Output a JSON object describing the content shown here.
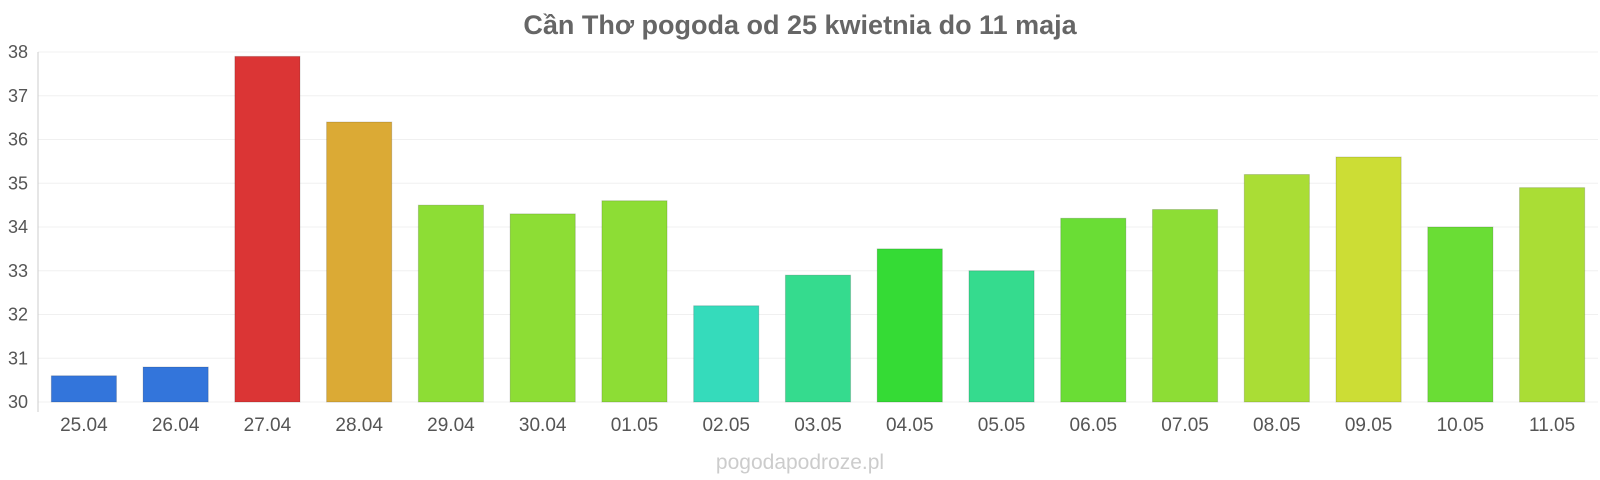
{
  "chart_data": {
    "type": "bar",
    "title": "Cần Thơ pogoda od 25 kwietnia do 11 maja",
    "xlabel": "",
    "ylabel": "",
    "categories": [
      "25.04",
      "26.04",
      "27.04",
      "28.04",
      "29.04",
      "30.04",
      "01.05",
      "02.05",
      "03.05",
      "04.05",
      "05.05",
      "06.05",
      "07.05",
      "08.05",
      "09.05",
      "10.05",
      "11.05"
    ],
    "values": [
      30.6,
      30.8,
      37.9,
      36.4,
      34.5,
      34.3,
      34.6,
      32.2,
      32.9,
      33.5,
      33.0,
      34.2,
      34.4,
      35.2,
      35.6,
      34.0,
      34.9
    ],
    "colors": [
      "#3375db",
      "#3375db",
      "#db3535",
      "#dbaa35",
      "#8ddd35",
      "#8ddd35",
      "#8ddd35",
      "#35dbbb",
      "#35db8e",
      "#35db35",
      "#35db8e",
      "#6add35",
      "#8ddd35",
      "#aadd35",
      "#ccdd35",
      "#6add35",
      "#aadd35"
    ],
    "ylim": [
      30,
      38
    ],
    "yticks": [
      "30",
      "31",
      "32",
      "33",
      "34",
      "35",
      "36",
      "37",
      "38"
    ],
    "grid": true,
    "legend": "none"
  },
  "footer": "pogodapodroze.pl"
}
